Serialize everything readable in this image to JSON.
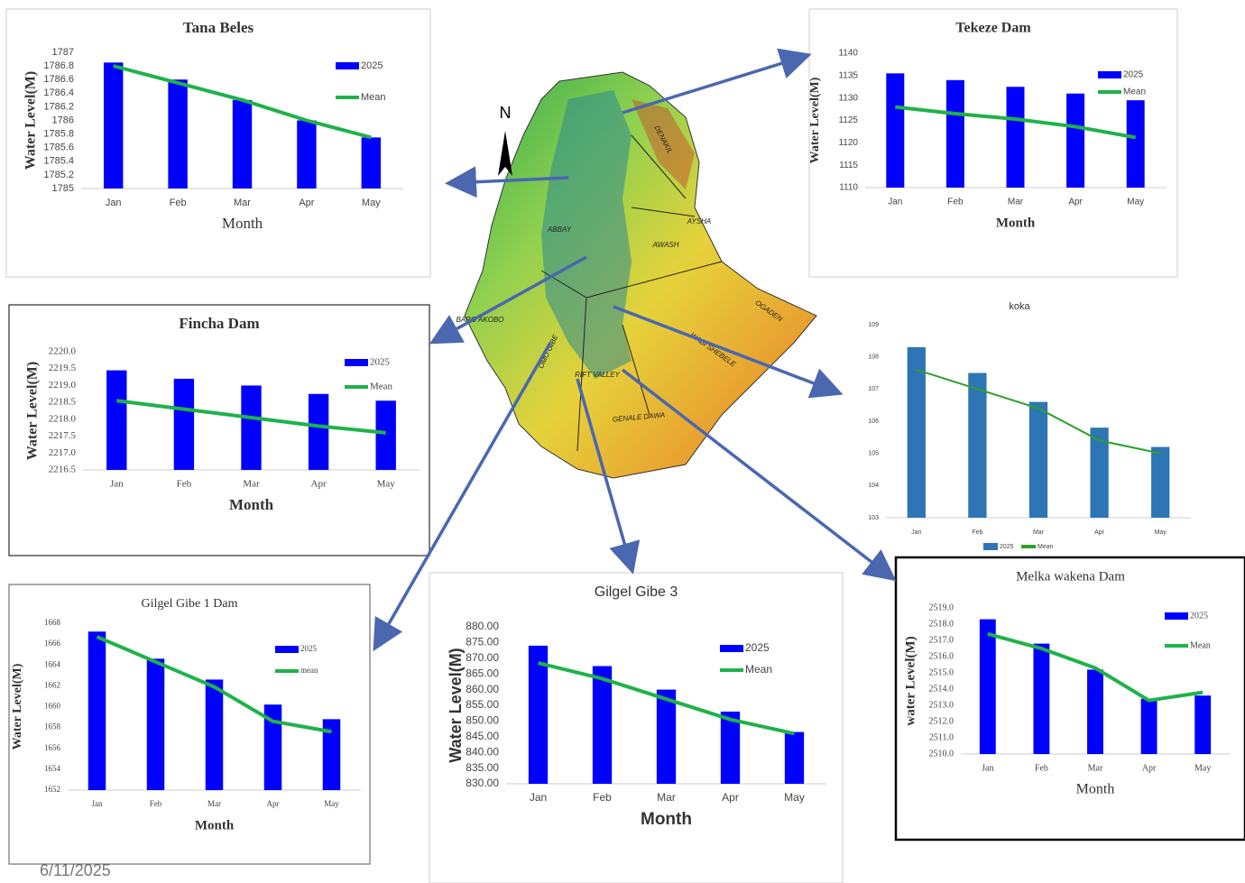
{
  "chart_data": [
    {
      "type": "bar",
      "title": "Tana Beles",
      "xlabel": "Month",
      "ylabel": "Water Level(M)",
      "categories": [
        "Jan",
        "Feb",
        "Mar",
        "Apr",
        "May"
      ],
      "series": [
        {
          "name": "2025",
          "type": "bar",
          "color": "#0000ff",
          "values": [
            1786.85,
            1786.6,
            1786.3,
            1786.0,
            1785.75
          ]
        },
        {
          "name": "Mean",
          "type": "line",
          "color": "#1fb24a",
          "values": [
            1786.8,
            1786.55,
            1786.3,
            1786.0,
            1785.75
          ]
        }
      ],
      "ylim": [
        1785,
        1787
      ],
      "yticks": [
        1785,
        1785.2,
        1785.4,
        1785.6,
        1785.8,
        1786,
        1786.2,
        1786.4,
        1786.6,
        1786.8,
        1787
      ],
      "legend": "top-right"
    },
    {
      "type": "bar",
      "title": "Tekeze Dam",
      "xlabel": "Month",
      "ylabel": "Water Level(M)",
      "categories": [
        "Jan",
        "Feb",
        "Mar",
        "Apr",
        "May"
      ],
      "series": [
        {
          "name": "2025",
          "type": "bar",
          "color": "#0000ff",
          "values": [
            1135.5,
            1134,
            1132.5,
            1131,
            1129.5
          ]
        },
        {
          "name": "Mean",
          "type": "line",
          "color": "#1fb24a",
          "values": [
            1128,
            1126.5,
            1125.3,
            1123.6,
            1121.2
          ]
        }
      ],
      "ylim": [
        1110,
        1140
      ],
      "yticks": [
        1110,
        1115,
        1120,
        1125,
        1130,
        1135,
        1140
      ],
      "legend": "top-right"
    },
    {
      "type": "bar",
      "title": "Fincha Dam",
      "xlabel": "Month",
      "ylabel": "Water Level(M)",
      "categories": [
        "Jan",
        "Feb",
        "Mar",
        "Apr",
        "May"
      ],
      "series": [
        {
          "name": "2025",
          "type": "bar",
          "color": "#0000ff",
          "values": [
            2219.45,
            2219.2,
            2219.0,
            2218.75,
            2218.55
          ]
        },
        {
          "name": "Mean",
          "type": "line",
          "color": "#1fb24a",
          "values": [
            2218.55,
            2218.3,
            2218.05,
            2217.8,
            2217.6
          ]
        }
      ],
      "ylim": [
        2216.5,
        2220
      ],
      "yticks": [
        2216.5,
        {
          "value": 2217,
          "label": "2217.0"
        },
        2217.5,
        {
          "value": 2218,
          "label": "2218.0"
        },
        2218.5,
        {
          "value": 2219,
          "label": "2219.0"
        },
        2219.5,
        {
          "value": 2220,
          "label": "2220.0"
        }
      ],
      "legend": "top-right"
    },
    {
      "type": "bar",
      "title": "koka",
      "categories": [
        "Jan",
        "Feb",
        "Mar",
        "Apr",
        "May"
      ],
      "series": [
        {
          "name": "2025",
          "type": "bar",
          "color": "#2e75b6",
          "values": [
            108.3,
            107.5,
            106.6,
            105.8,
            105.2
          ]
        },
        {
          "name": "Mean",
          "type": "line",
          "color": "#2ca02c",
          "values": [
            107.6,
            107.0,
            106.4,
            105.4,
            105.0
          ]
        }
      ],
      "ylim": [
        103,
        109
      ],
      "yticks": [
        103,
        104,
        105,
        106,
        107,
        108,
        109
      ],
      "legend": "bottom"
    },
    {
      "type": "bar",
      "title": "Melka wakena Dam",
      "xlabel": "Month",
      "ylabel": "water Level(M)",
      "categories": [
        "Jan",
        "Feb",
        "Mar",
        "Apr",
        "May"
      ],
      "series": [
        {
          "name": "2025",
          "type": "bar",
          "color": "#0000ff",
          "values": [
            2518.3,
            2516.8,
            2515.2,
            2513.4,
            2513.6
          ]
        },
        {
          "name": "Mean",
          "type": "line",
          "color": "#1fb24a",
          "values": [
            2517.4,
            2516.5,
            2515.3,
            2513.3,
            2513.8
          ]
        }
      ],
      "ylim": [
        2510,
        2519
      ],
      "yticks": [
        {
          "value": 2510,
          "label": "2510.0"
        },
        {
          "value": 2511,
          "label": "2511.0"
        },
        {
          "value": 2512,
          "label": "2512.0"
        },
        {
          "value": 2513,
          "label": "2513.0"
        },
        {
          "value": 2514,
          "label": "2514.0"
        },
        {
          "value": 2515,
          "label": "2515.0"
        },
        {
          "value": 2516,
          "label": "2516.0"
        },
        {
          "value": 2517,
          "label": "2517.0"
        },
        {
          "value": 2518,
          "label": "2518.0"
        },
        {
          "value": 2519,
          "label": "2519.0"
        }
      ],
      "legend": "top-right"
    },
    {
      "type": "bar",
      "title": "Gilgel Gibe 1 Dam",
      "xlabel": "Month",
      "ylabel": "Water Level(M)",
      "categories": [
        "Jan",
        "Feb",
        "Mar",
        "Apr",
        "May"
      ],
      "series": [
        {
          "name": "2025",
          "type": "bar",
          "color": "#0000ff",
          "values": [
            1667.2,
            1664.6,
            1662.6,
            1660.2,
            1658.8
          ]
        },
        {
          "name": "mean",
          "type": "line",
          "color": "#1fb24a",
          "values": [
            1666.7,
            1664.3,
            1661.9,
            1658.6,
            1657.6
          ]
        }
      ],
      "ylim": [
        1652,
        1668
      ],
      "yticks": [
        1652,
        1654,
        1656,
        1658,
        1660,
        1662,
        1664,
        1666,
        1668
      ],
      "legend": "top-right"
    },
    {
      "type": "bar",
      "title": "Gilgel Gibe 3",
      "xlabel": "Month",
      "ylabel": "Water Level(M)",
      "categories": [
        "Jan",
        "Feb",
        "Mar",
        "Apr",
        "May"
      ],
      "series": [
        {
          "name": "2025",
          "type": "bar",
          "color": "#0000ff",
          "values": [
            874,
            867.5,
            860,
            853,
            846.5
          ]
        },
        {
          "name": "Mean",
          "type": "line",
          "color": "#1fb24a",
          "values": [
            868.5,
            863.5,
            857,
            850.5,
            846
          ]
        }
      ],
      "ylim": [
        830,
        880
      ],
      "yticks": [
        {
          "value": 830,
          "label": "830.00"
        },
        {
          "value": 835,
          "label": "835.00"
        },
        {
          "value": 840,
          "label": "840.00"
        },
        {
          "value": 845,
          "label": "845.00"
        },
        {
          "value": 850,
          "label": "850.00"
        },
        {
          "value": 855,
          "label": "855.00"
        },
        {
          "value": 860,
          "label": "860.00"
        },
        {
          "value": 865,
          "label": "865.00"
        },
        {
          "value": 870,
          "label": "870.00"
        },
        {
          "value": 875,
          "label": "875.00"
        },
        {
          "value": 880,
          "label": "880.00"
        }
      ],
      "legend": "top-right"
    }
  ],
  "map": {
    "north": "N",
    "basins": [
      "DENAKIL",
      "ABBAY",
      "AWASH",
      "AYSHA",
      "OGADEN",
      "WABI SHEBELE",
      "GENALE DAWA",
      "BARO AKOBO",
      "OMO GIBE",
      "RIFT VALLEY"
    ]
  },
  "footer": {
    "date": "6/11/2025"
  }
}
